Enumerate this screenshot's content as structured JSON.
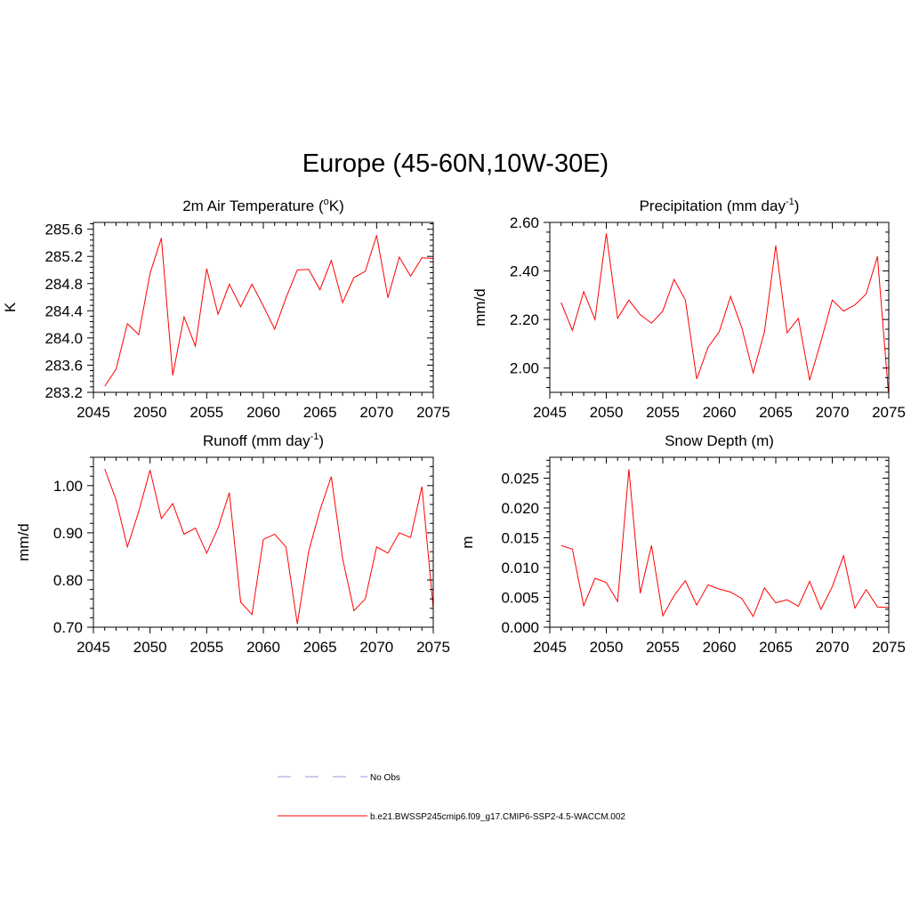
{
  "title": "Europe (45-60N,10W-30E)",
  "colors": {
    "model": "#ff0000",
    "obs": "#9999dd",
    "axis": "#000000"
  },
  "legend": {
    "obs_label": "No Obs",
    "model_label": "b.e21.BWSSP245cmip6.f09_g17.CMIP6-SSP2-4.5-WACCM.002"
  },
  "chart_data": [
    {
      "type": "line",
      "id": "temp",
      "title": "2m Air Temperature (",
      "title_sup": "o",
      "title_after": "K)",
      "ylabel": "K",
      "xlim": [
        2045,
        2075
      ],
      "ylim": [
        283.2,
        285.7
      ],
      "xticks": [
        2045,
        2050,
        2055,
        2060,
        2065,
        2070,
        2075
      ],
      "xtick_labels": [
        "2045",
        "2050",
        "2055",
        "2060",
        "2065",
        "2070",
        "2075"
      ],
      "yticks": [
        283.2,
        283.6,
        284.0,
        284.4,
        284.8,
        285.2,
        285.6
      ],
      "ytick_labels": [
        "283.2",
        "283.6",
        "284.0",
        "284.4",
        "284.8",
        "285.2",
        "285.6"
      ],
      "x": [
        2046,
        2047,
        2048,
        2049,
        2050,
        2051,
        2052,
        2053,
        2054,
        2055,
        2056,
        2057,
        2058,
        2059,
        2060,
        2061,
        2062,
        2063,
        2064,
        2065,
        2066,
        2067,
        2068,
        2069,
        2070,
        2071,
        2072,
        2073,
        2074,
        2075
      ],
      "series": [
        {
          "name": "b.e21.BWSSP245cmip6.f09_g17.CMIP6-SSP2-4.5-WACCM.002",
          "values": [
            283.29,
            283.54,
            284.21,
            284.05,
            284.95,
            285.47,
            283.45,
            284.31,
            283.88,
            285.02,
            284.35,
            284.79,
            284.46,
            284.79,
            284.47,
            284.13,
            284.59,
            285.0,
            285.01,
            284.71,
            285.14,
            284.52,
            284.89,
            284.98,
            285.51,
            284.59,
            285.19,
            284.91,
            285.18,
            285.17
          ]
        }
      ]
    },
    {
      "type": "line",
      "id": "precip",
      "title": "Precipitation (mm day",
      "title_sup": "-1",
      "title_after": ")",
      "ylabel": "mm/d",
      "xlim": [
        2045,
        2075
      ],
      "ylim": [
        1.9,
        2.6
      ],
      "xticks": [
        2045,
        2050,
        2055,
        2060,
        2065,
        2070,
        2075
      ],
      "xtick_labels": [
        "2045",
        "2050",
        "2055",
        "2060",
        "2065",
        "2070",
        "2075"
      ],
      "yticks": [
        2.0,
        2.2,
        2.4,
        2.6
      ],
      "ytick_labels": [
        "2.00",
        "2.20",
        "2.40",
        "2.60"
      ],
      "x": [
        2046,
        2047,
        2048,
        2049,
        2050,
        2051,
        2052,
        2053,
        2054,
        2055,
        2056,
        2057,
        2058,
        2059,
        2060,
        2061,
        2062,
        2063,
        2064,
        2065,
        2066,
        2067,
        2068,
        2069,
        2070,
        2071,
        2072,
        2073,
        2074,
        2075
      ],
      "series": [
        {
          "name": "b.e21.BWSSP245cmip6.f09_g17.CMIP6-SSP2-4.5-WACCM.002",
          "values": [
            2.27,
            2.155,
            2.315,
            2.2,
            2.555,
            2.205,
            2.28,
            2.22,
            2.185,
            2.235,
            2.365,
            2.28,
            1.955,
            2.085,
            2.15,
            2.295,
            2.165,
            1.98,
            2.15,
            2.505,
            2.145,
            2.205,
            1.95,
            2.11,
            2.28,
            2.235,
            2.26,
            2.305,
            2.46,
            1.88
          ]
        }
      ]
    },
    {
      "type": "line",
      "id": "runoff",
      "title": "Runoff (mm day",
      "title_sup": "-1",
      "title_after": ")",
      "ylabel": "mm/d",
      "xlim": [
        2045,
        2075
      ],
      "ylim": [
        0.7,
        1.06
      ],
      "xticks": [
        2045,
        2050,
        2055,
        2060,
        2065,
        2070,
        2075
      ],
      "xtick_labels": [
        "2045",
        "2050",
        "2055",
        "2060",
        "2065",
        "2070",
        "2075"
      ],
      "yticks": [
        0.7,
        0.8,
        0.9,
        1.0
      ],
      "ytick_labels": [
        "0.70",
        "0.80",
        "0.90",
        "1.00"
      ],
      "x": [
        2046,
        2047,
        2048,
        2049,
        2050,
        2051,
        2052,
        2053,
        2054,
        2055,
        2056,
        2057,
        2058,
        2059,
        2060,
        2061,
        2062,
        2063,
        2064,
        2065,
        2066,
        2067,
        2068,
        2069,
        2070,
        2071,
        2072,
        2073,
        2074,
        2075
      ],
      "series": [
        {
          "name": "b.e21.BWSSP245cmip6.f09_g17.CMIP6-SSP2-4.5-WACCM.002",
          "values": [
            1.035,
            0.97,
            0.87,
            0.945,
            1.033,
            0.93,
            0.962,
            0.897,
            0.91,
            0.857,
            0.91,
            0.985,
            0.753,
            0.727,
            0.886,
            0.897,
            0.87,
            0.707,
            0.86,
            0.948,
            1.019,
            0.845,
            0.735,
            0.76,
            0.87,
            0.857,
            0.9,
            0.89,
            0.998,
            0.74
          ]
        }
      ]
    },
    {
      "type": "line",
      "id": "snow",
      "title": "Snow Depth (m)",
      "title_sup": "",
      "title_after": "",
      "ylabel": "m",
      "xlim": [
        2045,
        2075
      ],
      "ylim": [
        0.0,
        0.0285
      ],
      "xticks": [
        2045,
        2050,
        2055,
        2060,
        2065,
        2070,
        2075
      ],
      "xtick_labels": [
        "2045",
        "2050",
        "2055",
        "2060",
        "2065",
        "2070",
        "2075"
      ],
      "yticks": [
        0.0,
        0.005,
        0.01,
        0.015,
        0.02,
        0.025
      ],
      "ytick_labels": [
        "0.000",
        "0.005",
        "0.010",
        "0.015",
        "0.020",
        "0.025"
      ],
      "x": [
        2046,
        2047,
        2048,
        2049,
        2050,
        2051,
        2052,
        2053,
        2054,
        2055,
        2056,
        2057,
        2058,
        2059,
        2060,
        2061,
        2062,
        2063,
        2064,
        2065,
        2066,
        2067,
        2068,
        2069,
        2070,
        2071,
        2072,
        2073,
        2074,
        2075
      ],
      "series": [
        {
          "name": "b.e21.BWSSP245cmip6.f09_g17.CMIP6-SSP2-4.5-WACCM.002",
          "values": [
            0.0137,
            0.0131,
            0.0036,
            0.0082,
            0.0075,
            0.0043,
            0.0265,
            0.0057,
            0.0137,
            0.0019,
            0.0053,
            0.0078,
            0.0037,
            0.0071,
            0.0064,
            0.0059,
            0.0048,
            0.0018,
            0.0066,
            0.0041,
            0.0046,
            0.0035,
            0.0077,
            0.003,
            0.0068,
            0.012,
            0.0032,
            0.0063,
            0.0034,
            0.0033
          ]
        }
      ]
    }
  ]
}
